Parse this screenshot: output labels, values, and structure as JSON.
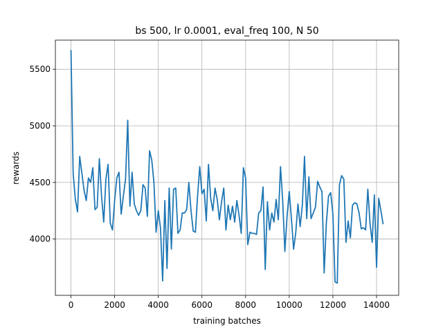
{
  "chart_data": {
    "type": "line",
    "title": "bs 500, lr 0.0001, eval_freq 100, N 50",
    "xlabel": "training batches",
    "ylabel": "rewards",
    "color": "#1f77b4",
    "grid": true,
    "xlim": [
      -715,
      15015
    ],
    "ylim": [
      3502,
      5758
    ],
    "xticks": [
      0,
      2000,
      4000,
      6000,
      8000,
      10000,
      12000,
      14000
    ],
    "yticks": [
      4000,
      4500,
      5000,
      5500
    ],
    "x": [
      0,
      100,
      200,
      300,
      400,
      500,
      600,
      700,
      800,
      900,
      1000,
      1100,
      1200,
      1300,
      1400,
      1500,
      1600,
      1700,
      1800,
      1900,
      2000,
      2100,
      2200,
      2300,
      2400,
      2500,
      2600,
      2700,
      2800,
      2900,
      3000,
      3100,
      3200,
      3300,
      3400,
      3500,
      3600,
      3700,
      3800,
      3900,
      4000,
      4100,
      4200,
      4300,
      4400,
      4500,
      4600,
      4700,
      4800,
      4900,
      5000,
      5100,
      5200,
      5300,
      5400,
      5500,
      5600,
      5700,
      5800,
      5900,
      6000,
      6100,
      6200,
      6300,
      6400,
      6500,
      6600,
      6700,
      6800,
      6900,
      7000,
      7100,
      7200,
      7300,
      7400,
      7500,
      7600,
      7700,
      7800,
      7900,
      8000,
      8100,
      8200,
      8300,
      8400,
      8500,
      8600,
      8700,
      8800,
      8900,
      9000,
      9100,
      9200,
      9300,
      9400,
      9500,
      9600,
      9700,
      9800,
      9900,
      10000,
      10100,
      10200,
      10300,
      10400,
      10500,
      10600,
      10700,
      10800,
      10900,
      11000,
      11100,
      11200,
      11300,
      11400,
      11500,
      11600,
      11700,
      11800,
      11900,
      12000,
      12100,
      12200,
      12300,
      12400,
      12500,
      12600,
      12700,
      12800,
      12900,
      13000,
      13100,
      13200,
      13300,
      13400,
      13500,
      13600,
      13700,
      13800,
      13900,
      14000,
      14100,
      14200,
      14300
    ],
    "values": [
      5670,
      4580,
      4350,
      4240,
      4730,
      4580,
      4430,
      4340,
      4540,
      4500,
      4630,
      4260,
      4280,
      4710,
      4380,
      4150,
      4530,
      4660,
      4140,
      4080,
      4340,
      4540,
      4590,
      4220,
      4380,
      4530,
      5050,
      4290,
      4590,
      4310,
      4250,
      4210,
      4250,
      4480,
      4450,
      4200,
      4780,
      4700,
      4500,
      4060,
      4250,
      4100,
      3630,
      4340,
      3740,
      4450,
      3910,
      4440,
      4450,
      4050,
      4080,
      4230,
      4230,
      4260,
      4500,
      4250,
      4070,
      4060,
      4380,
      4640,
      4400,
      4440,
      4160,
      4660,
      4360,
      4250,
      4450,
      4350,
      4170,
      4330,
      4450,
      4080,
      4300,
      4170,
      4290,
      4150,
      4340,
      4210,
      4050,
      4630,
      4540,
      3950,
      4060,
      4050,
      4050,
      4040,
      4230,
      4250,
      4460,
      3730,
      4330,
      4080,
      4230,
      4150,
      4350,
      4170,
      4640,
      4340,
      3890,
      4200,
      4420,
      4180,
      3910,
      4060,
      4310,
      4110,
      4300,
      4730,
      4180,
      4550,
      4180,
      4230,
      4280,
      4510,
      4460,
      4420,
      3700,
      4140,
      4380,
      4410,
      4220,
      3620,
      3610,
      4480,
      4560,
      4530,
      3970,
      4160,
      4010,
      4300,
      4320,
      4310,
      4230,
      4090,
      4100,
      4080,
      4440,
      4140,
      3970,
      4390,
      3750,
      4360,
      4250,
      4130
    ]
  }
}
